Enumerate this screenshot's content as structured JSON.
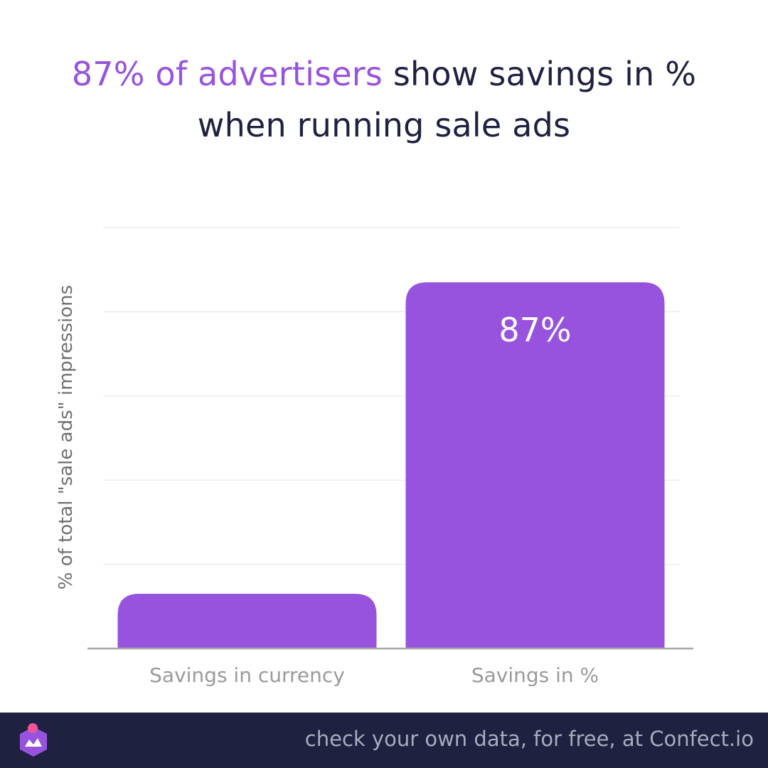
{
  "title": {
    "accent": "87% of advertisers",
    "rest": " show savings in %",
    "line2": "when running sale ads"
  },
  "footer": {
    "text": "check your own data, for free, at Confect.io"
  },
  "colors": {
    "accent": "#9753dd",
    "dark": "#1e2140",
    "axis_text": "#9a9a9a",
    "footer_text": "#a9abbf"
  },
  "icons": {
    "logo": "confect-logo-icon"
  },
  "chart_data": {
    "type": "bar",
    "title": "",
    "categories": [
      "Savings in currency",
      "Savings in %"
    ],
    "values": [
      13,
      87
    ],
    "data_labels": [
      "",
      "87%"
    ],
    "xlabel": "",
    "ylabel": "% of total \"sale ads\" impressions",
    "ylim": [
      0,
      100
    ],
    "grid": true,
    "bar_color": "#9753dd"
  }
}
